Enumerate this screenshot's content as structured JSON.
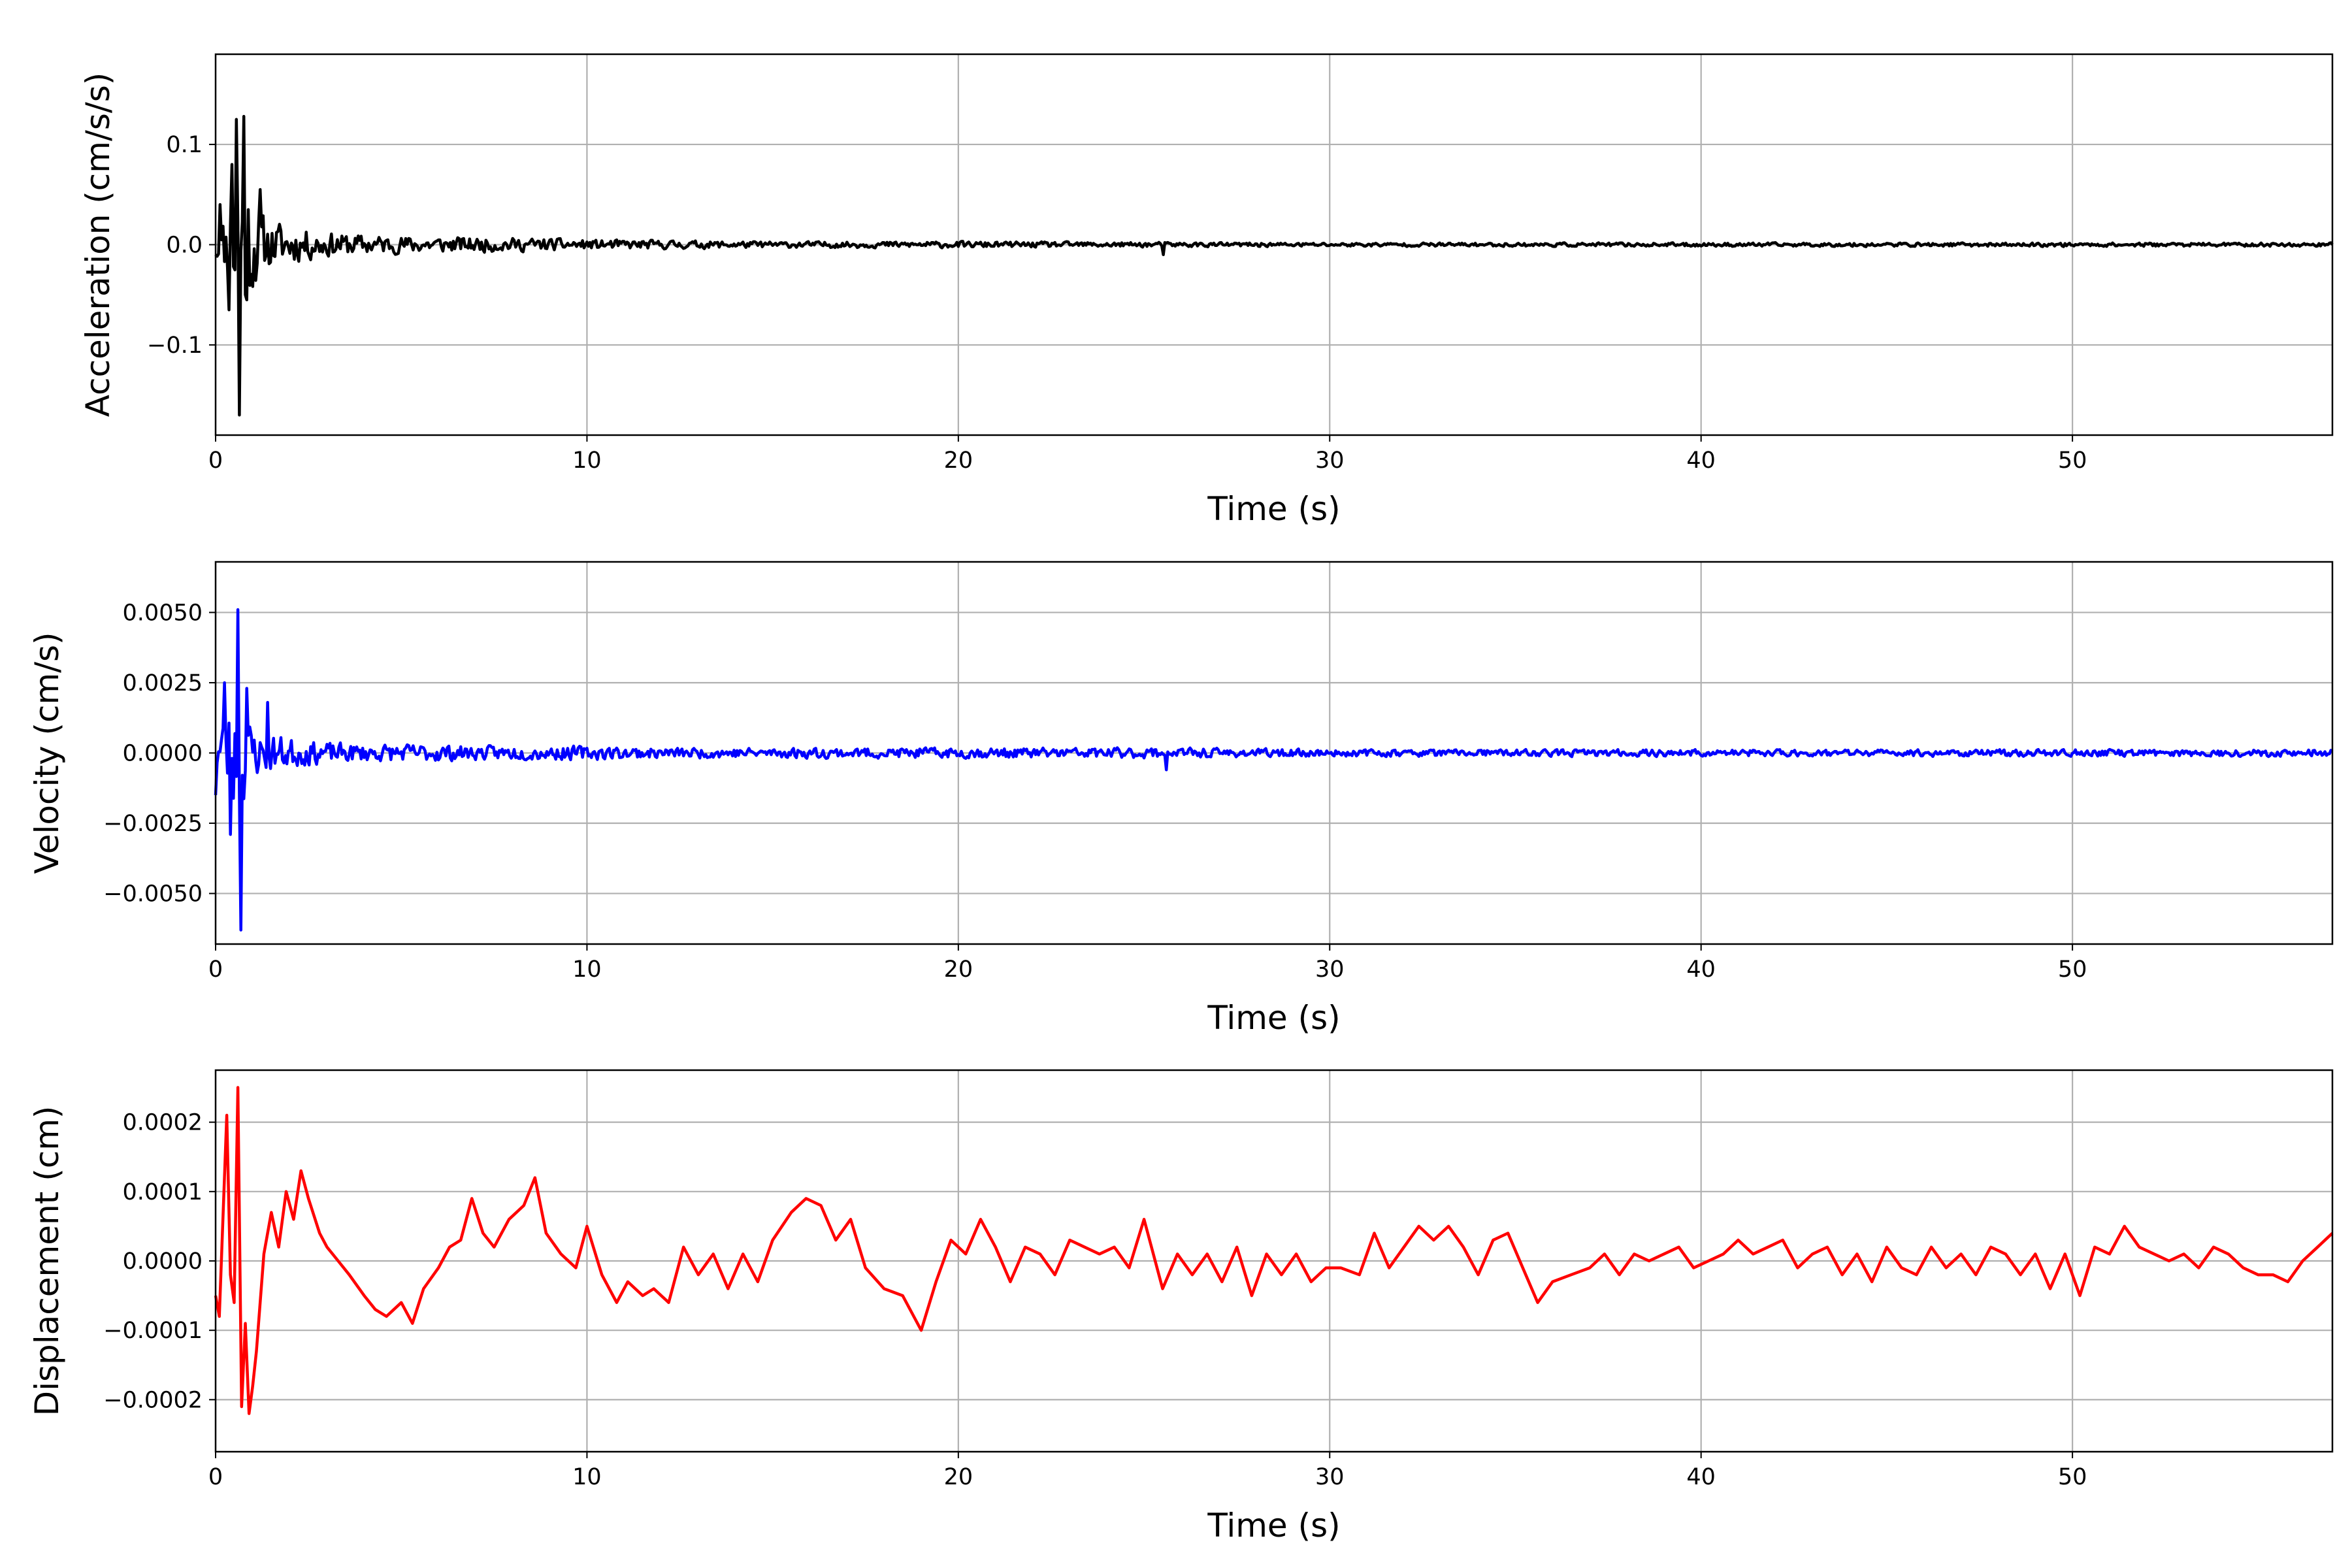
{
  "chart_data": [
    {
      "type": "line",
      "xlabel": "Time (s)",
      "ylabel": "Acceleration (cm/s/s)",
      "xlim": [
        0,
        57
      ],
      "ylim": [
        -0.19,
        0.19
      ],
      "xticks": [
        0,
        10,
        20,
        30,
        40,
        50
      ],
      "xtick_labels": [
        "0",
        "10",
        "20",
        "30",
        "40",
        "50"
      ],
      "yticks": [
        0.1,
        0.0,
        -0.1
      ],
      "ytick_labels": [
        "0.1",
        "0.0",
        "−0.1"
      ],
      "grid": true,
      "color": "#000000",
      "envelope": {
        "t": [
          0,
          0.3,
          0.6,
          0.9,
          1.2,
          1.5,
          2.0,
          2.5,
          3.0,
          4.0,
          5.0,
          6.0,
          7.0,
          8.0,
          9.0,
          10.0,
          12.0,
          15.0,
          20.0,
          25.0,
          30.0,
          40.0,
          50.0,
          57.0
        ],
        "amp": [
          0.035,
          0.05,
          0.15,
          0.1,
          0.05,
          0.04,
          0.03,
          0.025,
          0.02,
          0.016,
          0.014,
          0.013,
          0.012,
          0.011,
          0.01,
          0.008,
          0.007,
          0.005,
          0.005,
          0.004,
          0.003,
          0.003,
          0.003,
          0.003
        ]
      },
      "peaks": [
        {
          "x": 0.1,
          "y": 0.04
        },
        {
          "x": 0.35,
          "y": -0.065
        },
        {
          "x": 0.45,
          "y": 0.08
        },
        {
          "x": 0.55,
          "y": 0.125
        },
        {
          "x": 0.65,
          "y": -0.17
        },
        {
          "x": 0.75,
          "y": 0.128
        },
        {
          "x": 0.85,
          "y": -0.055
        },
        {
          "x": 1.2,
          "y": 0.055
        },
        {
          "x": 25.5,
          "y": -0.01
        }
      ],
      "seed": 11
    },
    {
      "type": "line",
      "xlabel": "Time (s)",
      "ylabel": "Velocity (cm/s)",
      "xlim": [
        0,
        57
      ],
      "ylim": [
        -0.0068,
        0.0068
      ],
      "xticks": [
        0,
        10,
        20,
        30,
        40,
        50
      ],
      "xtick_labels": [
        "0",
        "10",
        "20",
        "30",
        "40",
        "50"
      ],
      "yticks": [
        0.005,
        0.0025,
        0.0,
        -0.0025,
        -0.005
      ],
      "ytick_labels": [
        "0.0050",
        "0.0025",
        "0.0000",
        "−0.0025",
        "−0.0050"
      ],
      "grid": true,
      "color": "#0000ff",
      "envelope": {
        "t": [
          0,
          0.3,
          0.6,
          0.9,
          1.2,
          1.5,
          2.0,
          2.5,
          3.0,
          4.0,
          5.0,
          6.0,
          7.0,
          8.0,
          9.0,
          10.0,
          12.0,
          15.0,
          20.0,
          25.0,
          30.0,
          40.0,
          50.0,
          57.0
        ],
        "amp": [
          0.0015,
          0.0025,
          0.004,
          0.0018,
          0.0012,
          0.0011,
          0.0009,
          0.0007,
          0.0006,
          0.0005,
          0.0005,
          0.0005,
          0.0004,
          0.0004,
          0.0004,
          0.0004,
          0.0003,
          0.0003,
          0.0003,
          0.0003,
          0.0002,
          0.0002,
          0.0002,
          0.0002
        ]
      },
      "peaks": [
        {
          "x": 0.0,
          "y": -0.0015
        },
        {
          "x": 0.25,
          "y": 0.0025
        },
        {
          "x": 0.4,
          "y": -0.0029
        },
        {
          "x": 0.6,
          "y": 0.0051
        },
        {
          "x": 0.7,
          "y": -0.0063
        },
        {
          "x": 0.85,
          "y": 0.0023
        },
        {
          "x": 1.4,
          "y": 0.0018
        },
        {
          "x": 25.6,
          "y": -0.0006
        }
      ],
      "seed": 23
    },
    {
      "type": "line",
      "xlabel": "Time (s)",
      "ylabel": "Displacement (cm)",
      "xlim": [
        0,
        57
      ],
      "ylim": [
        -0.000275,
        0.000275
      ],
      "xticks": [
        0,
        10,
        20,
        30,
        40,
        50
      ],
      "xtick_labels": [
        "0",
        "10",
        "20",
        "30",
        "40",
        "50"
      ],
      "yticks": [
        0.0002,
        0.0001,
        0.0,
        -0.0001,
        -0.0002
      ],
      "ytick_labels": [
        "0.0002",
        "0.0001",
        "0.0000",
        "−0.0001",
        "−0.0002"
      ],
      "grid": true,
      "color": "#ff0000",
      "x": [
        0,
        0.1,
        0.3,
        0.4,
        0.5,
        0.6,
        0.7,
        0.8,
        0.9,
        1.0,
        1.1,
        1.3,
        1.5,
        1.7,
        1.9,
        2.1,
        2.3,
        2.5,
        2.8,
        3.0,
        3.3,
        3.6,
        4.0,
        4.3,
        4.6,
        5.0,
        5.3,
        5.6,
        6.0,
        6.3,
        6.6,
        6.9,
        7.2,
        7.5,
        7.9,
        8.3,
        8.6,
        8.9,
        9.3,
        9.7,
        10.0,
        10.4,
        10.8,
        11.1,
        11.5,
        11.8,
        12.2,
        12.6,
        13.0,
        13.4,
        13.8,
        14.2,
        14.6,
        15.0,
        15.5,
        15.9,
        16.3,
        16.7,
        17.1,
        17.5,
        18.0,
        18.5,
        19.0,
        19.4,
        19.8,
        20.2,
        20.6,
        21.0,
        21.4,
        21.8,
        22.2,
        22.6,
        23.0,
        23.4,
        23.8,
        24.2,
        24.6,
        25.0,
        25.5,
        25.9,
        26.3,
        26.7,
        27.1,
        27.5,
        27.9,
        28.3,
        28.7,
        29.1,
        29.5,
        29.9,
        30.3,
        30.8,
        31.2,
        31.6,
        32.0,
        32.4,
        32.8,
        33.2,
        33.6,
        34.0,
        34.4,
        34.8,
        35.2,
        35.6,
        36.0,
        36.5,
        37.0,
        37.4,
        37.8,
        38.2,
        38.6,
        39.0,
        39.4,
        39.8,
        40.2,
        40.6,
        41.0,
        41.4,
        41.8,
        42.2,
        42.6,
        43.0,
        43.4,
        43.8,
        44.2,
        44.6,
        45.0,
        45.4,
        45.8,
        46.2,
        46.6,
        47.0,
        47.4,
        47.8,
        48.2,
        48.6,
        49.0,
        49.4,
        49.8,
        50.2,
        50.6,
        51.0,
        51.4,
        51.8,
        52.2,
        52.6,
        53.0,
        53.4,
        53.8,
        54.2,
        54.6,
        55.0,
        55.4,
        55.8,
        56.2,
        56.6,
        57.0
      ],
      "values": [
        -5e-05,
        -8e-05,
        0.00021,
        -2e-05,
        -6e-05,
        0.00025,
        -0.00021,
        -9e-05,
        -0.00022,
        -0.00018,
        -0.00013,
        1e-05,
        7e-05,
        2e-05,
        0.0001,
        6e-05,
        0.00013,
        9e-05,
        4e-05,
        2e-05,
        0.0,
        -2e-05,
        -5e-05,
        -7e-05,
        -8e-05,
        -6e-05,
        -9e-05,
        -4e-05,
        -1e-05,
        2e-05,
        3e-05,
        9e-05,
        4e-05,
        2e-05,
        6e-05,
        8e-05,
        0.00012,
        4e-05,
        1e-05,
        -1e-05,
        5e-05,
        -2e-05,
        -6e-05,
        -3e-05,
        -5e-05,
        -4e-05,
        -6e-05,
        2e-05,
        -2e-05,
        1e-05,
        -4e-05,
        1e-05,
        -3e-05,
        3e-05,
        7e-05,
        9e-05,
        8e-05,
        3e-05,
        6e-05,
        -1e-05,
        -4e-05,
        -5e-05,
        -0.0001,
        -3e-05,
        3e-05,
        1e-05,
        6e-05,
        2e-05,
        -3e-05,
        2e-05,
        1e-05,
        -2e-05,
        3e-05,
        2e-05,
        1e-05,
        2e-05,
        -1e-05,
        6e-05,
        -4e-05,
        1e-05,
        -2e-05,
        1e-05,
        -3e-05,
        2e-05,
        -5e-05,
        1e-05,
        -2e-05,
        1e-05,
        -3e-05,
        -1e-05,
        -1e-05,
        -2e-05,
        4e-05,
        -1e-05,
        2e-05,
        5e-05,
        3e-05,
        5e-05,
        2e-05,
        -2e-05,
        3e-05,
        4e-05,
        -1e-05,
        -6e-05,
        -3e-05,
        -2e-05,
        -1e-05,
        1e-05,
        -2e-05,
        1e-05,
        0.0,
        1e-05,
        2e-05,
        -1e-05,
        0.0,
        1e-05,
        3e-05,
        1e-05,
        2e-05,
        3e-05,
        -1e-05,
        1e-05,
        2e-05,
        -2e-05,
        1e-05,
        -3e-05,
        2e-05,
        -1e-05,
        -2e-05,
        2e-05,
        -1e-05,
        1e-05,
        -2e-05,
        2e-05,
        1e-05,
        -2e-05,
        1e-05,
        -4e-05,
        1e-05,
        -5e-05,
        2e-05,
        1e-05,
        5e-05,
        2e-05,
        1e-05,
        0.0,
        1e-05,
        -1e-05,
        2e-05,
        1e-05,
        -1e-05,
        -2e-05,
        -2e-05,
        -3e-05,
        0.0,
        2e-05,
        4e-05
      ]
    }
  ]
}
